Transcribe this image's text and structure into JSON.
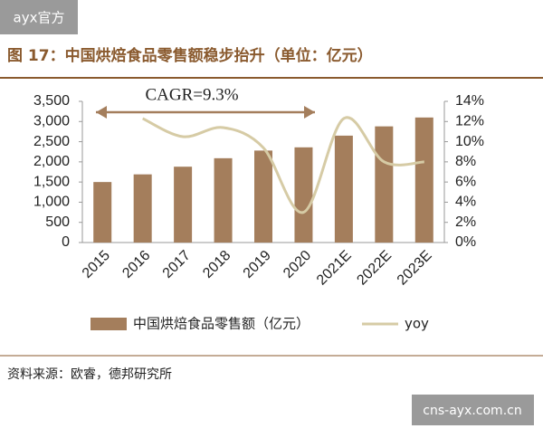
{
  "watermark_top": "ayx官方",
  "watermark_bottom": "cns-ayx.com.cn",
  "chart_data": {
    "type": "bar_line",
    "title": "图 17：中国烘焙食品零售额稳步抬升（单位：亿元）",
    "annotation": "CAGR=9.3%",
    "source": "资料来源：欧睿，德邦研究所",
    "categories": [
      "2015",
      "2016",
      "2017",
      "2018",
      "2019",
      "2020",
      "2021E",
      "2022E",
      "2023E"
    ],
    "series": [
      {
        "name": "中国烘焙食品零售额（亿元）",
        "type": "bar",
        "color": "#a47e5c",
        "values": [
          1500,
          1690,
          1880,
          2090,
          2280,
          2360,
          2650,
          2880,
          3100
        ]
      },
      {
        "name": "yoy",
        "type": "line",
        "axis": "y2",
        "color": "#d6cba5",
        "values": [
          null,
          12.3,
          10.5,
          11.4,
          9.4,
          3.0,
          12.3,
          8.0,
          8.0
        ]
      }
    ],
    "ylim": [
      0,
      3500
    ],
    "yticks": [
      0,
      500,
      {
        "value": 1000,
        "label": "1,000"
      },
      {
        "value": 1500,
        "label": "1,500"
      },
      {
        "value": 2000,
        "label": "2,000"
      },
      {
        "value": 2500,
        "label": "2,500"
      },
      {
        "value": 3000,
        "label": "3,000"
      },
      {
        "value": 3500,
        "label": "3,500"
      }
    ],
    "y2lim": [
      0,
      14
    ],
    "y2ticks": [
      {
        "value": 0,
        "label": "0%"
      },
      {
        "value": 2,
        "label": "2%"
      },
      {
        "value": 4,
        "label": "4%"
      },
      {
        "value": 6,
        "label": "6%"
      },
      {
        "value": 8,
        "label": "8%"
      },
      {
        "value": 10,
        "label": "10%"
      },
      {
        "value": 12,
        "label": "12%"
      },
      {
        "value": 14,
        "label": "14%"
      }
    ]
  }
}
